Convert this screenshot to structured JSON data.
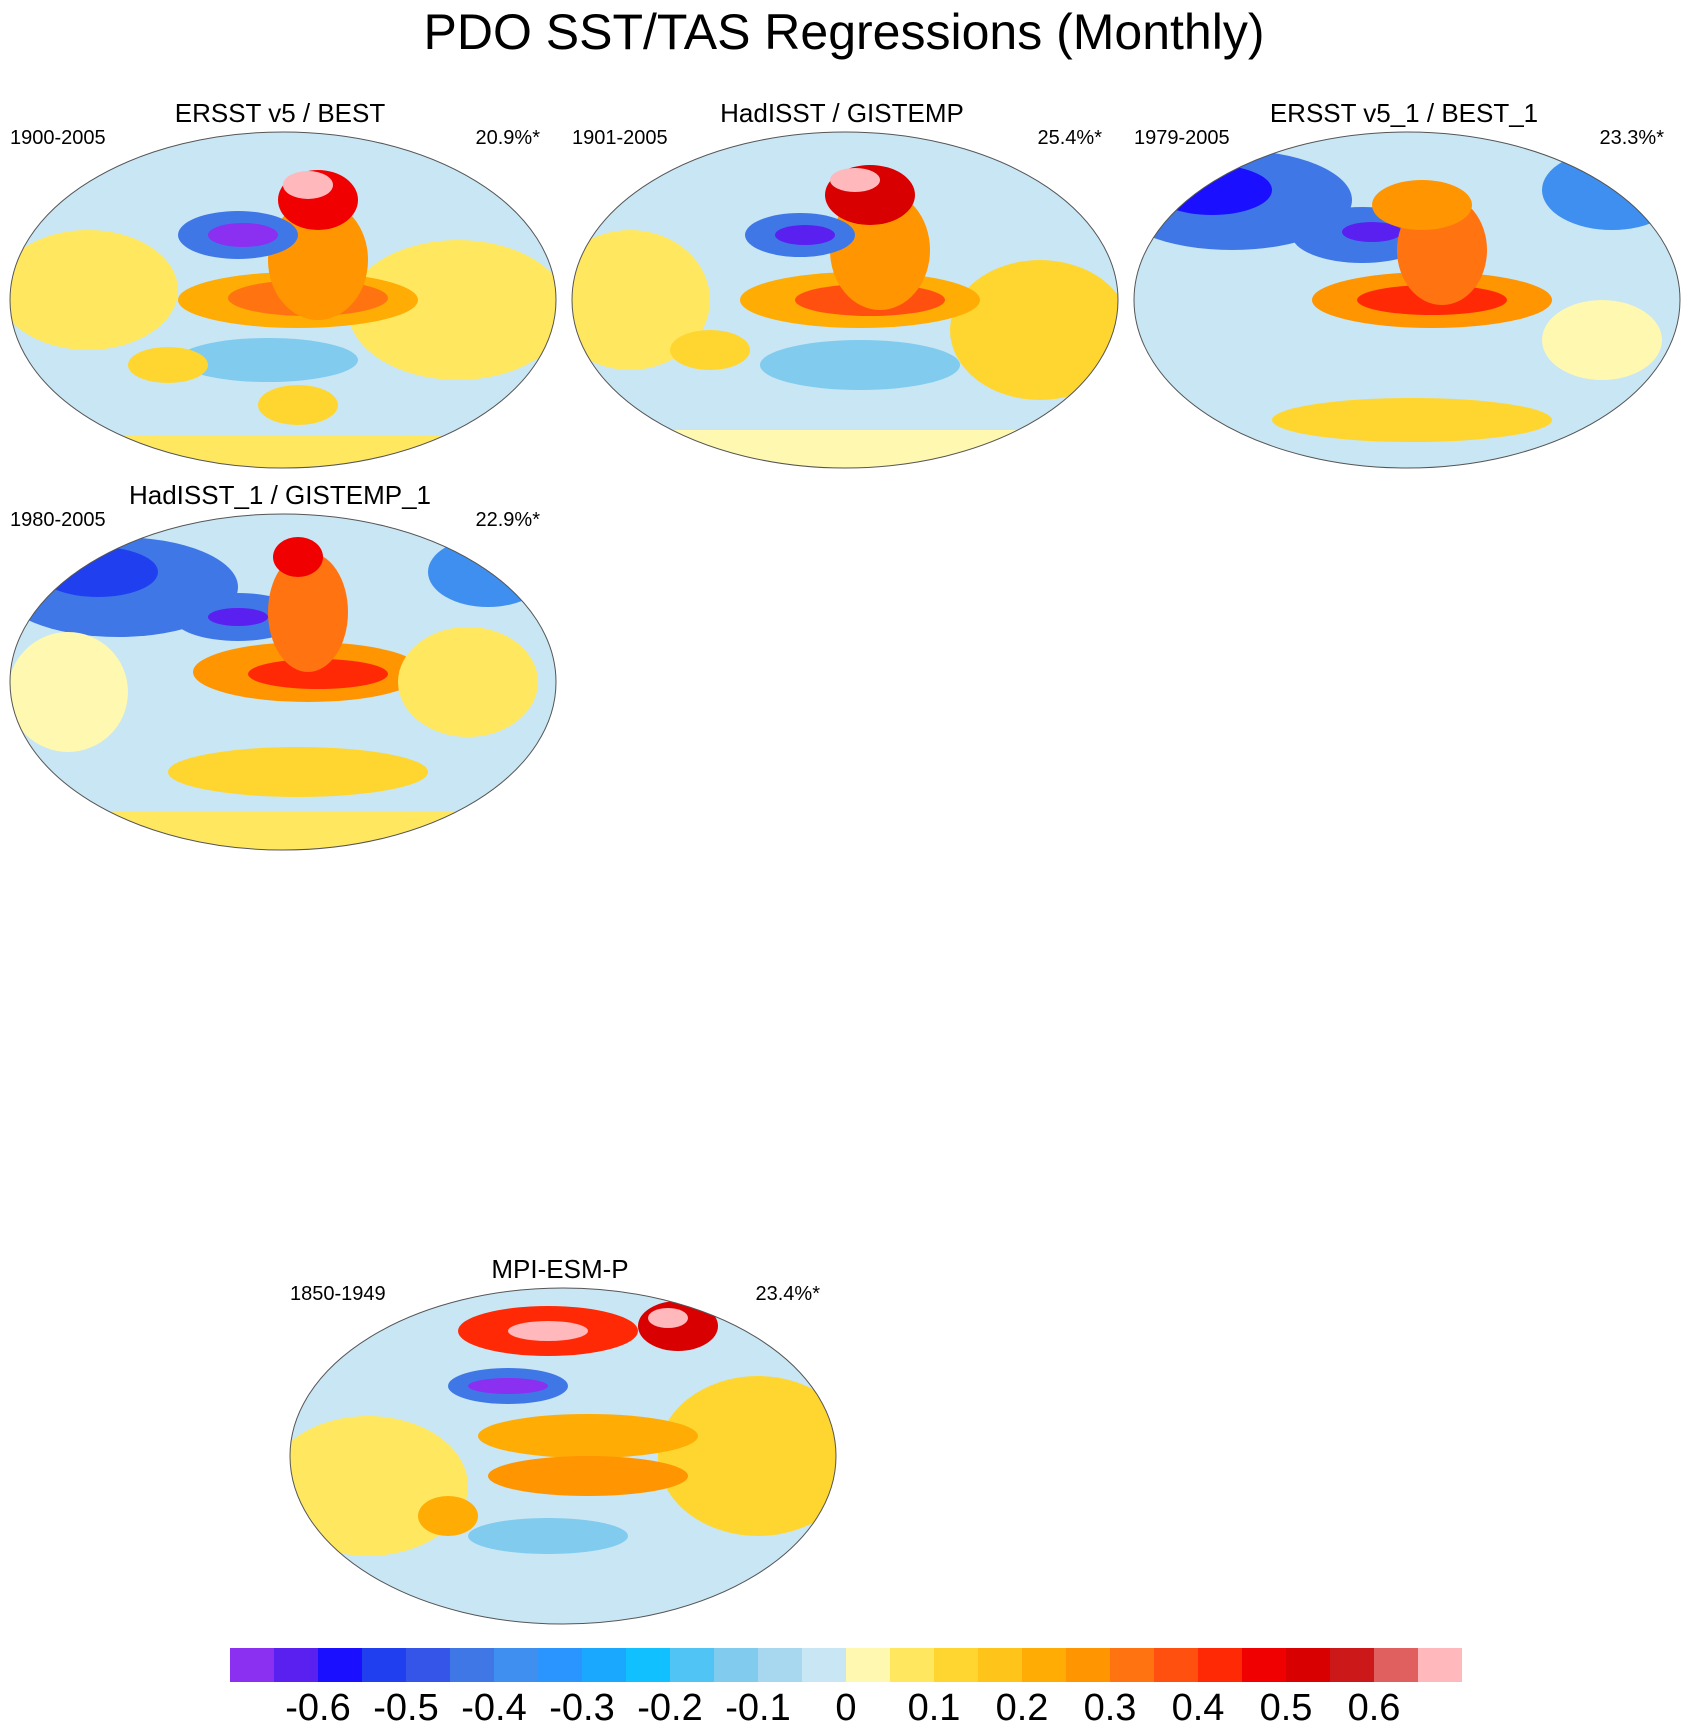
{
  "title": "PDO SST/TAS Regressions (Monthly)",
  "panels": [
    {
      "title": "ERSST v5 / BEST",
      "period": "1900-2005",
      "percent": "20.9%*"
    },
    {
      "title": "HadISST / GISTEMP",
      "period": "1901-2005",
      "percent": "25.4%*"
    },
    {
      "title": "ERSST v5_1 / BEST_1",
      "period": "1979-2005",
      "percent": "23.3%*"
    },
    {
      "title": "HadISST_1 / GISTEMP_1",
      "period": "1980-2005",
      "percent": "22.9%*"
    },
    {
      "title": "MPI-ESM-P",
      "period": "1850-1949",
      "percent": "23.4%*"
    }
  ],
  "colorbar": {
    "labels": [
      "-0.6",
      "-0.5",
      "-0.4",
      "-0.3",
      "-0.2",
      "-0.1",
      "0",
      "0.1",
      "0.2",
      "0.3",
      "0.4",
      "0.5",
      "0.6"
    ],
    "colors": [
      "#8b2ff0",
      "#5a20f0",
      "#1a10ff",
      "#2040f0",
      "#3555e8",
      "#3f78e6",
      "#3f8ff0",
      "#2a95ff",
      "#1aa8ff",
      "#10c0ff",
      "#50c5f5",
      "#80cbee",
      "#a8d8f0",
      "#c8e6f4",
      "#fff8b0",
      "#ffe860",
      "#ffd630",
      "#ffc41a",
      "#ffac05",
      "#ff9500",
      "#ff7410",
      "#ff5010",
      "#ff2a05",
      "#f00000",
      "#d80000",
      "#cc1818",
      "#e06060",
      "#ffb8bc"
    ]
  }
}
